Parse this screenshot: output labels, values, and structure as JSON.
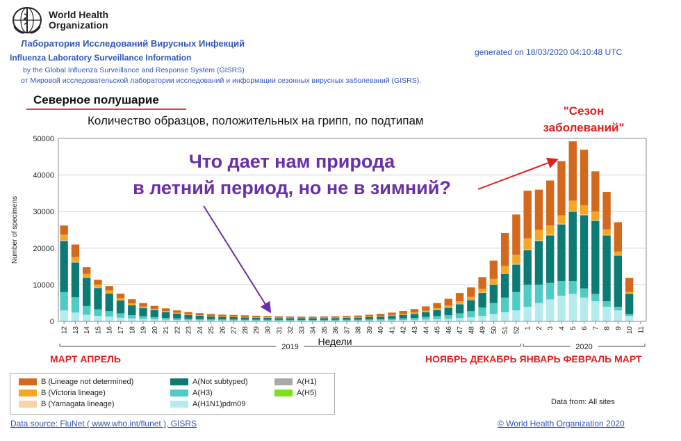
{
  "header": {
    "org_name_line1": "World Health",
    "org_name_line2": "Organization",
    "title_ru": "Лаборатория Исследований Вирусных Инфекций",
    "title_en": "Influenza Laboratory Surveillance Information",
    "by_line": "by the Global Influenza Surveillance and Response System (GISRS)",
    "ot_line": "от Мировой исследовательской лаборатории исследований и информации сезонных вирусных заболеваний (GISRS).",
    "generated": "generated on 18/03/2020 04:10:48 UTC"
  },
  "annotations": {
    "hemisphere": "Северное полушарие",
    "season_line1": "\"Сезон",
    "season_line2": "заболеваний\"",
    "question_line1": "Что дает нам природа",
    "question_line2": "в летний период, но не в зимний?",
    "months_left": "МАРТ АПРЕЛЬ",
    "months_right": "НОЯБРЬ ДЕКАБРЬ ЯНВАРЬ ФЕВРАЛЬ МАРТ"
  },
  "footer": {
    "data_from": "Data from: All sites",
    "source": "Data source: FluNet ( www.who.int/flunet ), GISRS",
    "copyright": "© World Health Organization 2020"
  },
  "colors": {
    "b_not_determined": "#d2691e",
    "b_victoria": "#f5a623",
    "b_yamagata": "#f7d4a4",
    "a_not_subtyped": "#0c7a75",
    "a_h3": "#4fcbc6",
    "a_h1n1pdm09": "#b4ecee",
    "a_h1": "#a8a8a8",
    "a_h5": "#7ee01a"
  },
  "chart_data": {
    "type": "bar",
    "stacked": true,
    "title": "Количество образцов, положительных на грипп, по подтипам",
    "xlabel": "Недели",
    "ylabel": "Number of specimens",
    "ylim": [
      0,
      50000
    ],
    "yticks": [
      0,
      10000,
      20000,
      30000,
      40000,
      50000
    ],
    "year_labels": [
      "2019",
      "2020"
    ],
    "categories": [
      "12",
      "13",
      "14",
      "15",
      "16",
      "17",
      "18",
      "19",
      "20",
      "21",
      "22",
      "23",
      "24",
      "25",
      "26",
      "27",
      "28",
      "29",
      "30",
      "31",
      "32",
      "33",
      "34",
      "35",
      "36",
      "37",
      "38",
      "39",
      "40",
      "41",
      "42",
      "43",
      "44",
      "45",
      "46",
      "47",
      "48",
      "49",
      "50",
      "51",
      "52",
      "1",
      "2",
      "3",
      "4",
      "5",
      "6",
      "7",
      "8",
      "9",
      "10",
      "11"
    ],
    "series": [
      {
        "name": "A(H1N1)pdm09",
        "key": "a_h1n1pdm09",
        "values": [
          3000,
          2400,
          1800,
          1500,
          1300,
          1000,
          800,
          650,
          550,
          450,
          380,
          320,
          290,
          260,
          240,
          230,
          220,
          200,
          190,
          180,
          175,
          170,
          170,
          175,
          180,
          190,
          200,
          230,
          260,
          300,
          350,
          400,
          500,
          600,
          700,
          900,
          1100,
          1500,
          2000,
          2500,
          3000,
          4000,
          5000,
          6000,
          7000,
          7500,
          6500,
          5500,
          4000,
          3000,
          1500,
          0
        ]
      },
      {
        "name": "A(H3)",
        "key": "a_h3",
        "values": [
          5000,
          4200,
          2400,
          1800,
          1500,
          1200,
          900,
          750,
          600,
          500,
          430,
          370,
          330,
          300,
          280,
          270,
          260,
          250,
          240,
          230,
          220,
          210,
          210,
          220,
          230,
          240,
          260,
          300,
          340,
          400,
          470,
          550,
          700,
          850,
          1000,
          1300,
          1700,
          2300,
          3000,
          4000,
          5000,
          6000,
          5000,
          4500,
          4000,
          3500,
          2500,
          2000,
          1500,
          1000,
          500,
          0
        ]
      },
      {
        "name": "A(Not subtyped)",
        "key": "a_not_subtyped",
        "values": [
          14000,
          9500,
          7700,
          5800,
          4800,
          3500,
          2700,
          2200,
          1900,
          1550,
          1300,
          1050,
          900,
          780,
          700,
          650,
          600,
          560,
          530,
          500,
          490,
          470,
          470,
          480,
          500,
          520,
          560,
          620,
          700,
          800,
          950,
          1100,
          1300,
          1600,
          2000,
          2500,
          3000,
          4000,
          5000,
          6500,
          7500,
          9500,
          12000,
          13000,
          15500,
          19000,
          20000,
          20000,
          18000,
          14000,
          5500,
          0
        ]
      },
      {
        "name": "A(H1)",
        "key": "a_h1",
        "values": [
          0,
          0,
          0,
          0,
          0,
          0,
          0,
          0,
          0,
          0,
          0,
          0,
          0,
          0,
          0,
          0,
          0,
          0,
          0,
          0,
          0,
          0,
          0,
          0,
          0,
          0,
          0,
          0,
          0,
          0,
          0,
          0,
          0,
          0,
          0,
          0,
          0,
          0,
          0,
          0,
          0,
          0,
          0,
          0,
          0,
          0,
          0,
          0,
          0,
          0,
          0,
          0
        ]
      },
      {
        "name": "A(H5)",
        "key": "a_h5",
        "values": [
          0,
          0,
          0,
          0,
          0,
          0,
          0,
          0,
          0,
          0,
          0,
          0,
          0,
          0,
          0,
          0,
          0,
          0,
          0,
          0,
          0,
          0,
          0,
          0,
          0,
          0,
          0,
          0,
          0,
          0,
          0,
          0,
          0,
          0,
          0,
          0,
          0,
          0,
          0,
          0,
          0,
          0,
          0,
          0,
          0,
          0,
          0,
          0,
          0,
          0,
          0,
          0
        ]
      },
      {
        "name": "B (Yamagata lineage)",
        "key": "b_yamagata",
        "values": [
          200,
          150,
          100,
          80,
          70,
          60,
          50,
          40,
          30,
          30,
          25,
          20,
          20,
          20,
          20,
          20,
          20,
          20,
          20,
          20,
          20,
          20,
          20,
          20,
          20,
          20,
          20,
          20,
          20,
          20,
          30,
          40,
          50,
          50,
          60,
          70,
          80,
          100,
          120,
          150,
          200,
          200,
          200,
          200,
          200,
          200,
          200,
          200,
          150,
          100,
          60,
          0
        ]
      },
      {
        "name": "B (Victoria lineage)",
        "key": "b_victoria",
        "values": [
          1500,
          1350,
          1000,
          900,
          800,
          600,
          500,
          400,
          350,
          300,
          250,
          200,
          180,
          160,
          150,
          140,
          130,
          120,
          110,
          100,
          100,
          100,
          100,
          100,
          110,
          120,
          130,
          150,
          180,
          220,
          270,
          330,
          400,
          500,
          600,
          700,
          800,
          1000,
          1500,
          2000,
          2500,
          3000,
          2800,
          2500,
          2300,
          2800,
          2500,
          2300,
          1500,
          1000,
          500,
          0
        ]
      },
      {
        "name": "B (Lineage not determined)",
        "key": "b_not_determined",
        "values": [
          2500,
          3400,
          1800,
          1300,
          1200,
          1200,
          1100,
          950,
          800,
          720,
          620,
          580,
          530,
          500,
          460,
          450,
          440,
          400,
          380,
          360,
          330,
          320,
          320,
          330,
          350,
          380,
          420,
          480,
          560,
          650,
          780,
          950,
          1150,
          1400,
          1800,
          2300,
          2600,
          3200,
          5000,
          9000,
          11000,
          13000,
          11000,
          12300,
          14800,
          16200,
          15200,
          11000,
          10200,
          8000,
          3800,
          0
        ]
      }
    ]
  }
}
